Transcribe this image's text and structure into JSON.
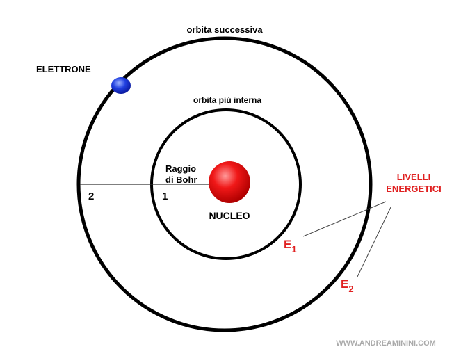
{
  "orbits": {
    "outer": {
      "label": "orbita successiva",
      "number": "2"
    },
    "inner": {
      "label": "orbita più interna",
      "number": "1"
    }
  },
  "electron": {
    "label": "ELETTRONE"
  },
  "bohr_radius": {
    "line1": "Raggio",
    "line2": "di Bohr"
  },
  "nucleus": {
    "label": "NUCLEO"
  },
  "energy_levels": {
    "title_line1": "LIVELLI",
    "title_line2": "ENERGETICI",
    "levels": [
      {
        "letter": "E",
        "index": "1"
      },
      {
        "letter": "E",
        "index": "2"
      }
    ]
  },
  "watermark": "WWW.ANDREAMININI.COM"
}
